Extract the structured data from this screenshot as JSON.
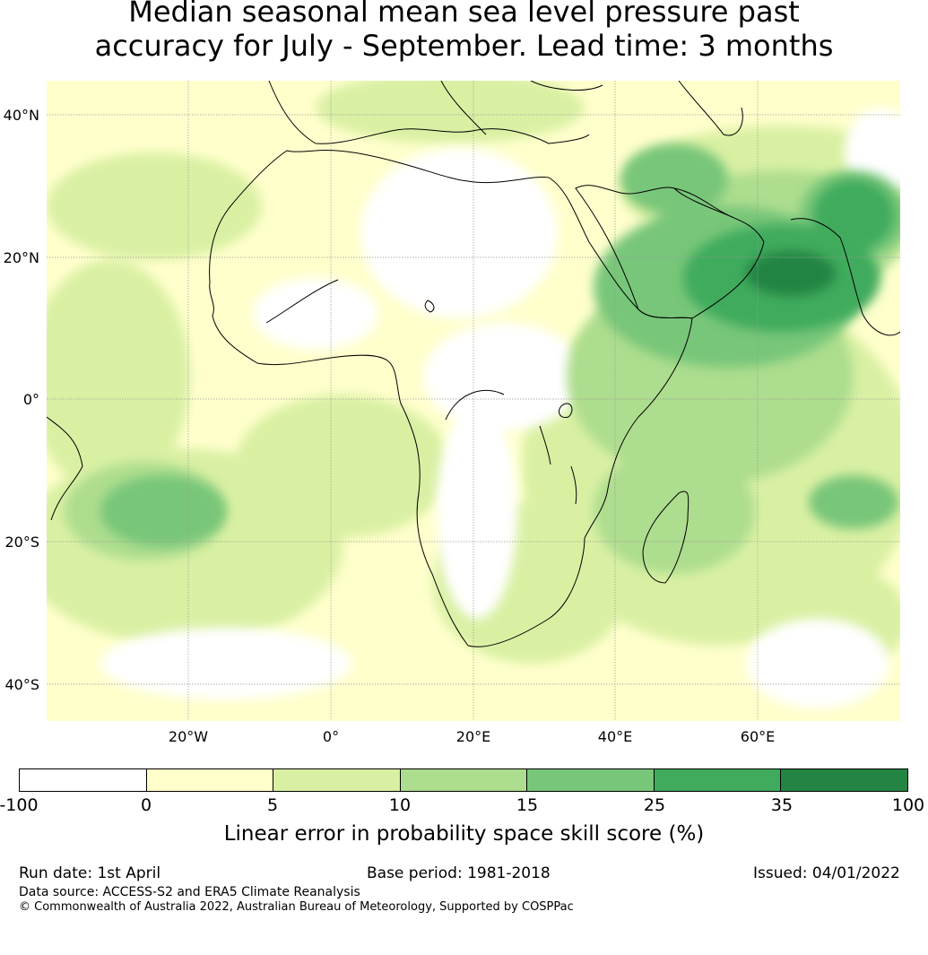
{
  "title": {
    "line1": "Median seasonal mean sea level pressure past",
    "line2": "accuracy for July - September. Lead time: 3 months"
  },
  "map": {
    "lat_labels": [
      "40°N",
      "20°N",
      "0°",
      "20°S",
      "40°S"
    ],
    "lon_labels": [
      "20°W",
      "0°",
      "20°E",
      "40°E",
      "60°E"
    ],
    "colors": {
      "below_zero": "#ffffff",
      "c0_5": "#ffffcc",
      "c5_10": "#d9f0a3",
      "c10_15": "#addd8e",
      "c15_25": "#78c679",
      "c25_35": "#41ab5d",
      "c35_100": "#238443",
      "coastline": "#000000",
      "grid": "#9a9a9a"
    }
  },
  "colorbar": {
    "ticks": [
      "-100",
      "0",
      "5",
      "10",
      "15",
      "25",
      "35",
      "100"
    ],
    "colors": [
      "#ffffff",
      "#ffffcc",
      "#d9f0a3",
      "#addd8e",
      "#78c679",
      "#41ab5d",
      "#238443"
    ],
    "label": "Linear error in probability space skill score (%)"
  },
  "footer": {
    "run_date": "Run date: 1st April",
    "base_period": "Base period: 1981-2018",
    "issued": "Issued: 04/01/2022",
    "data_source": "Data source: ACCESS-S2 and ERA5 Climate Reanalysis",
    "copyright": "© Commonwealth of Australia 2022, Australian Bureau of Meteorology, Supported by COSPPac"
  }
}
